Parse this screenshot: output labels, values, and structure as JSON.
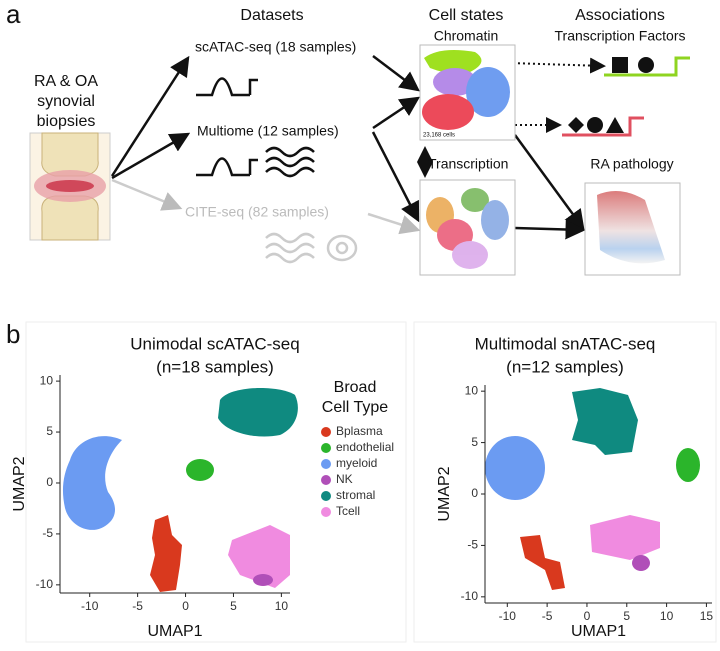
{
  "panel_a": {
    "label": "a",
    "headers": [
      "Datasets",
      "Cell states",
      "Associations"
    ],
    "sample": [
      "RA & OA",
      "synovial",
      "biopsies"
    ],
    "datasets": [
      "scATAC-seq (18 samples)",
      "Multiome (12 samples)",
      "CITE-seq (82 samples)"
    ],
    "chromatin": "Chromatin",
    "cell_count": "23,168 cells",
    "transcription": "Transcription",
    "transcription_factors": "Transcription Factors",
    "ra_pathology": "RA pathology"
  },
  "panel_b": {
    "label": "b",
    "x_label": "UMAP1",
    "y_label": "UMAP2",
    "legend": {
      "title": [
        "Broad",
        "Cell Type"
      ],
      "items": [
        {
          "name": "Bplasma",
          "color": "#d9391e"
        },
        {
          "name": "endothelial",
          "color": "#2bb52b"
        },
        {
          "name": "myeloid",
          "color": "#6b9bf2"
        },
        {
          "name": "NK",
          "color": "#b04fb8"
        },
        {
          "name": "stromal",
          "color": "#0f8a80"
        },
        {
          "name": "Tcell",
          "color": "#f08be0"
        }
      ]
    },
    "plots": [
      {
        "title": [
          "Unimodal scATAC-seq",
          "(n=18 samples)"
        ],
        "xlim": [
          -13.1,
          10.9
        ],
        "ylim": [
          -10.8,
          10.6
        ],
        "xticks": [
          -10,
          -5,
          0,
          5,
          10
        ],
        "yticks": [
          10,
          5,
          0,
          -5,
          -10
        ]
      },
      {
        "title": [
          "Multimodal snATAC-seq",
          "(n=12 samples)"
        ],
        "xlim": [
          -12.8,
          15.7
        ],
        "ylim": [
          -10.6,
          10.6
        ],
        "xticks": [
          -10,
          -5,
          0,
          5,
          10,
          15
        ],
        "yticks": [
          10,
          5,
          0,
          -5,
          -10
        ]
      }
    ]
  }
}
